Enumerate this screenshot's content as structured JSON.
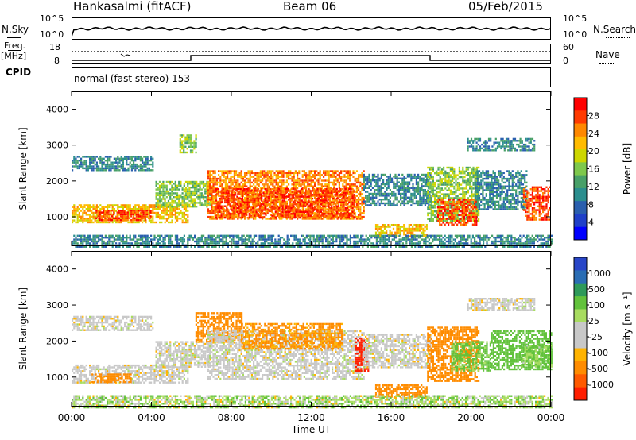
{
  "header": {
    "station": "Hankasalmi (fitACF)",
    "beam": "Beam 06",
    "date": "05/Feb/2015"
  },
  "noise_panel": {
    "left_label": "N.Sky",
    "left_ticks": [
      "10^5",
      "10^0"
    ],
    "right_ticks": [
      "10^5",
      "10^0"
    ],
    "right_label": "N.Search"
  },
  "freq_panel": {
    "label_line1": "Freq.",
    "label_line2": "[MHz]",
    "left_ticks": [
      "18",
      "8"
    ],
    "right_ticks": [
      "60",
      "0"
    ],
    "right_label": "Nave",
    "cpid_label": "CPID",
    "cpid_text": "normal (fast stereo) 153"
  },
  "chart_data": [
    {
      "type": "heatmap",
      "name": "power",
      "ylabel": "Slant Range [km]",
      "yticks": [
        "4000",
        "3000",
        "2000",
        "1000"
      ],
      "ylim": [
        180,
        4500
      ],
      "xlim_hours": [
        0,
        24
      ],
      "colorbar": {
        "label": "Power [dB]",
        "ticks": [
          "28",
          "24",
          "20",
          "16",
          "12",
          "8",
          "4"
        ],
        "colors": [
          "#ff0000",
          "#ff3a00",
          "#ff8800",
          "#ffbb00",
          "#cdd600",
          "#7ec84c",
          "#48a068",
          "#2b8e8e",
          "#2a5fae",
          "#1f40c8",
          "#0000ff"
        ]
      },
      "regions": [
        {
          "t": [
            0.0,
            4.1
          ],
          "r": [
            2300,
            2700
          ],
          "level": 3
        },
        {
          "t": [
            0.0,
            5.8
          ],
          "r": [
            850,
            1350
          ],
          "level": 7
        },
        {
          "t": [
            1.2,
            4.0
          ],
          "r": [
            900,
            1200
          ],
          "level": 9
        },
        {
          "t": [
            4.2,
            7.0
          ],
          "r": [
            1300,
            2000
          ],
          "level": 5
        },
        {
          "t": [
            5.4,
            6.2
          ],
          "r": [
            2800,
            3300
          ],
          "level": 5
        },
        {
          "t": [
            6.8,
            14.6
          ],
          "r": [
            950,
            2300
          ],
          "level": 8
        },
        {
          "t": [
            7.2,
            14.2
          ],
          "r": [
            1000,
            1800
          ],
          "level": 9
        },
        {
          "t": [
            14.6,
            18.0
          ],
          "r": [
            1300,
            2200
          ],
          "level": 3
        },
        {
          "t": [
            15.2,
            17.8
          ],
          "r": [
            450,
            800
          ],
          "level": 7
        },
        {
          "t": [
            17.8,
            20.4
          ],
          "r": [
            900,
            2400
          ],
          "level": 5
        },
        {
          "t": [
            18.3,
            20.3
          ],
          "r": [
            800,
            1500
          ],
          "level": 9
        },
        {
          "t": [
            19.8,
            23.2
          ],
          "r": [
            2850,
            3200
          ],
          "level": 3
        },
        {
          "t": [
            20.2,
            22.8
          ],
          "r": [
            1200,
            2300
          ],
          "level": 3
        },
        {
          "t": [
            22.6,
            24.0
          ],
          "r": [
            900,
            1850
          ],
          "level": 9
        },
        {
          "t": [
            0.0,
            24.0
          ],
          "r": [
            180,
            500
          ],
          "level": 3
        }
      ]
    },
    {
      "type": "heatmap",
      "name": "velocity",
      "ylabel": "Slant Range [km]",
      "yticks": [
        "4000",
        "3000",
        "2000",
        "1000"
      ],
      "ylim": [
        180,
        4500
      ],
      "xlim_hours": [
        0,
        24
      ],
      "xticks": [
        "00:00",
        "04:00",
        "08:00",
        "12:00",
        "16:00",
        "20:00",
        "00:00"
      ],
      "xlabel": "Time UT",
      "colorbar": {
        "label": "Velocity [m s⁻¹]",
        "ticks": [
          "1000",
          "500",
          "100",
          "25",
          "-25",
          "-100",
          "-500",
          "-1000"
        ],
        "colors": [
          "#2846c8",
          "#2a6db4",
          "#2e9a5a",
          "#62c23c",
          "#a8dc60",
          "#c8c8c8",
          "#c8c8c8",
          "#ffb300",
          "#ff8c00",
          "#ff5a00",
          "#ff1e00"
        ]
      },
      "regions": [
        {
          "t": [
            0.0,
            4.1
          ],
          "r": [
            2300,
            2700
          ],
          "v": 0
        },
        {
          "t": [
            0.0,
            5.8
          ],
          "r": [
            850,
            1350
          ],
          "v": 0
        },
        {
          "t": [
            1.0,
            3.0
          ],
          "r": [
            850,
            1100
          ],
          "v": -200
        },
        {
          "t": [
            4.2,
            7.0
          ],
          "r": [
            1300,
            2000
          ],
          "v": 0
        },
        {
          "t": [
            6.2,
            8.5
          ],
          "r": [
            2000,
            2800
          ],
          "v": -300
        },
        {
          "t": [
            6.8,
            14.6
          ],
          "r": [
            950,
            2300
          ],
          "v": 0
        },
        {
          "t": [
            8.5,
            13.5
          ],
          "r": [
            1800,
            2500
          ],
          "v": -150
        },
        {
          "t": [
            14.2,
            14.9
          ],
          "r": [
            1200,
            2100
          ],
          "v": -900
        },
        {
          "t": [
            14.6,
            18.0
          ],
          "r": [
            1300,
            2200
          ],
          "v": 0
        },
        {
          "t": [
            15.2,
            17.8
          ],
          "r": [
            450,
            800
          ],
          "v": -300
        },
        {
          "t": [
            17.8,
            20.4
          ],
          "r": [
            900,
            2400
          ],
          "v": -250
        },
        {
          "t": [
            19.0,
            21.0
          ],
          "r": [
            1200,
            2000
          ],
          "v": 150
        },
        {
          "t": [
            19.8,
            23.2
          ],
          "r": [
            2850,
            3200
          ],
          "v": 0
        },
        {
          "t": [
            21.0,
            24.0
          ],
          "r": [
            1200,
            2300
          ],
          "v": 300
        },
        {
          "t": [
            22.5,
            24.0
          ],
          "r": [
            1300,
            1900
          ],
          "v": 120
        },
        {
          "t": [
            0.0,
            24.0
          ],
          "r": [
            180,
            500
          ],
          "v": 60
        }
      ]
    }
  ]
}
